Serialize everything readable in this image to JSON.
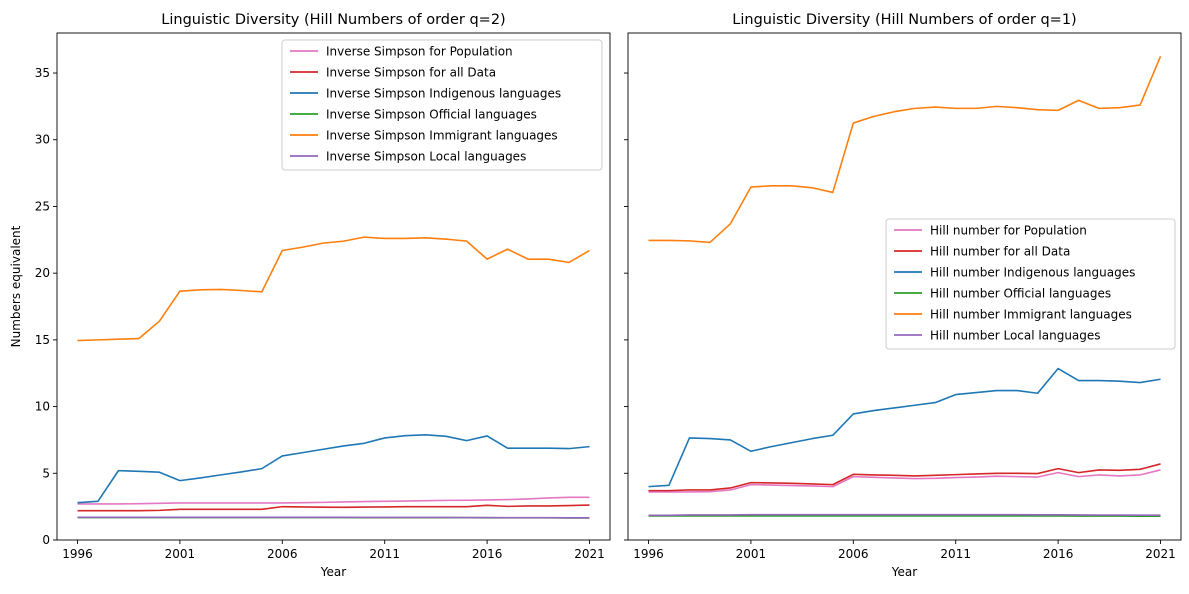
{
  "chart_data": [
    {
      "type": "line",
      "title": "Linguistic Diversity (Hill Numbers of order q=2)",
      "xlabel": "Year",
      "ylabel": "Numbers equivalent",
      "xlim": [
        1995,
        2022
      ],
      "ylim": [
        0,
        38
      ],
      "xticks": [
        1996,
        2001,
        2006,
        2011,
        2016,
        2021
      ],
      "yticks": [
        0,
        5,
        10,
        15,
        20,
        25,
        30,
        35
      ],
      "x": [
        1996,
        1997,
        1998,
        1999,
        2000,
        2001,
        2002,
        2003,
        2004,
        2005,
        2006,
        2007,
        2008,
        2009,
        2010,
        2011,
        2012,
        2013,
        2014,
        2015,
        2016,
        2017,
        2018,
        2019,
        2020,
        2021
      ],
      "legend_position": "upper-right",
      "grid": false,
      "series": [
        {
          "name": "Inverse Simpson for Population",
          "color": "#e377c2",
          "values": [
            2.7,
            2.7,
            2.7,
            2.72,
            2.75,
            2.78,
            2.78,
            2.78,
            2.78,
            2.78,
            2.78,
            2.8,
            2.82,
            2.85,
            2.88,
            2.9,
            2.92,
            2.95,
            2.97,
            2.98,
            3.0,
            3.03,
            3.08,
            3.15,
            3.2,
            3.2
          ]
        },
        {
          "name": "Inverse Simpson for all Data",
          "color": "#d62728",
          "values": [
            2.2,
            2.2,
            2.2,
            2.2,
            2.22,
            2.3,
            2.3,
            2.3,
            2.3,
            2.3,
            2.5,
            2.48,
            2.46,
            2.45,
            2.47,
            2.48,
            2.5,
            2.5,
            2.5,
            2.5,
            2.6,
            2.52,
            2.55,
            2.55,
            2.58,
            2.62
          ]
        },
        {
          "name": "Inverse Simpson Indigenous languages",
          "color": "#1f77b4",
          "values": [
            2.8,
            2.9,
            5.2,
            5.15,
            5.08,
            4.45,
            4.65,
            4.88,
            5.1,
            5.35,
            6.3,
            6.55,
            6.8,
            7.05,
            7.25,
            7.65,
            7.82,
            7.88,
            7.77,
            7.45,
            7.8,
            6.88,
            6.88,
            6.88,
            6.85,
            7.0
          ]
        },
        {
          "name": "Inverse Simpson Official languages",
          "color": "#2ca02c",
          "values": [
            1.68,
            1.68,
            1.68,
            1.68,
            1.68,
            1.68,
            1.68,
            1.68,
            1.68,
            1.68,
            1.68,
            1.68,
            1.68,
            1.68,
            1.67,
            1.67,
            1.67,
            1.67,
            1.67,
            1.67,
            1.66,
            1.66,
            1.66,
            1.66,
            1.65,
            1.65
          ]
        },
        {
          "name": "Inverse Simpson Immigrant languages",
          "color": "#ff7f0e",
          "values": [
            14.95,
            15.0,
            15.05,
            15.1,
            16.4,
            18.65,
            18.75,
            18.78,
            18.7,
            18.6,
            21.7,
            21.95,
            22.25,
            22.4,
            22.7,
            22.6,
            22.6,
            22.65,
            22.55,
            22.4,
            21.05,
            21.8,
            21.05,
            21.05,
            20.8,
            21.7
          ]
        },
        {
          "name": "Inverse Simpson Local languages",
          "color": "#9467bd",
          "values": [
            1.7,
            1.7,
            1.7,
            1.7,
            1.7,
            1.7,
            1.7,
            1.7,
            1.7,
            1.7,
            1.7,
            1.7,
            1.7,
            1.7,
            1.69,
            1.69,
            1.69,
            1.69,
            1.69,
            1.68,
            1.68,
            1.67,
            1.67,
            1.67,
            1.66,
            1.66
          ]
        }
      ]
    },
    {
      "type": "line",
      "title": "Linguistic Diversity (Hill Numbers of order q=1)",
      "xlabel": "Year",
      "ylabel": "",
      "xlim": [
        1995,
        2022
      ],
      "ylim": [
        0,
        38
      ],
      "xticks": [
        1996,
        2001,
        2006,
        2011,
        2016,
        2021
      ],
      "yticks": [
        0,
        5,
        10,
        15,
        20,
        25,
        30,
        35
      ],
      "y_tick_labels_shown": false,
      "x": [
        1996,
        1997,
        1998,
        1999,
        2000,
        2001,
        2002,
        2003,
        2004,
        2005,
        2006,
        2007,
        2008,
        2009,
        2010,
        2011,
        2012,
        2013,
        2014,
        2015,
        2016,
        2017,
        2018,
        2019,
        2020,
        2021
      ],
      "legend_position": "center-right",
      "grid": false,
      "series": [
        {
          "name": "Hill number for Population",
          "color": "#e377c2",
          "values": [
            3.6,
            3.6,
            3.6,
            3.62,
            3.75,
            4.15,
            4.12,
            4.08,
            4.05,
            4.0,
            4.75,
            4.7,
            4.65,
            4.6,
            4.62,
            4.68,
            4.72,
            4.78,
            4.75,
            4.72,
            5.05,
            4.75,
            4.88,
            4.8,
            4.88,
            5.25
          ]
        },
        {
          "name": "Hill number for all Data",
          "color": "#d62728",
          "values": [
            3.7,
            3.7,
            3.75,
            3.75,
            3.9,
            4.3,
            4.28,
            4.25,
            4.2,
            4.15,
            4.92,
            4.88,
            4.85,
            4.8,
            4.85,
            4.9,
            4.95,
            5.0,
            5.0,
            4.98,
            5.35,
            5.05,
            5.25,
            5.22,
            5.3,
            5.7
          ]
        },
        {
          "name": "Hill number Indigenous languages",
          "color": "#1f77b4",
          "values": [
            4.0,
            4.1,
            7.65,
            7.6,
            7.5,
            6.65,
            7.0,
            7.3,
            7.6,
            7.85,
            9.45,
            9.7,
            9.9,
            10.1,
            10.3,
            10.9,
            11.05,
            11.2,
            11.2,
            11.0,
            12.85,
            11.95,
            11.95,
            11.9,
            11.8,
            12.05
          ]
        },
        {
          "name": "Hill number Official languages",
          "color": "#2ca02c",
          "values": [
            1.8,
            1.8,
            1.8,
            1.8,
            1.8,
            1.8,
            1.8,
            1.8,
            1.8,
            1.8,
            1.8,
            1.8,
            1.8,
            1.8,
            1.8,
            1.8,
            1.8,
            1.8,
            1.8,
            1.8,
            1.8,
            1.79,
            1.79,
            1.79,
            1.78,
            1.78
          ]
        },
        {
          "name": "Hill number Immigrant languages",
          "color": "#ff7f0e",
          "values": [
            22.45,
            22.45,
            22.42,
            22.3,
            23.7,
            26.45,
            26.55,
            26.55,
            26.4,
            26.05,
            31.25,
            31.75,
            32.1,
            32.35,
            32.45,
            32.35,
            32.35,
            32.5,
            32.4,
            32.25,
            32.2,
            32.95,
            32.35,
            32.4,
            32.6,
            36.25
          ]
        },
        {
          "name": "Hill number Local languages",
          "color": "#9467bd",
          "values": [
            1.85,
            1.85,
            1.88,
            1.88,
            1.88,
            1.9,
            1.9,
            1.9,
            1.9,
            1.9,
            1.9,
            1.9,
            1.9,
            1.9,
            1.9,
            1.9,
            1.9,
            1.9,
            1.9,
            1.89,
            1.89,
            1.88,
            1.87,
            1.87,
            1.86,
            1.86
          ]
        }
      ]
    }
  ]
}
